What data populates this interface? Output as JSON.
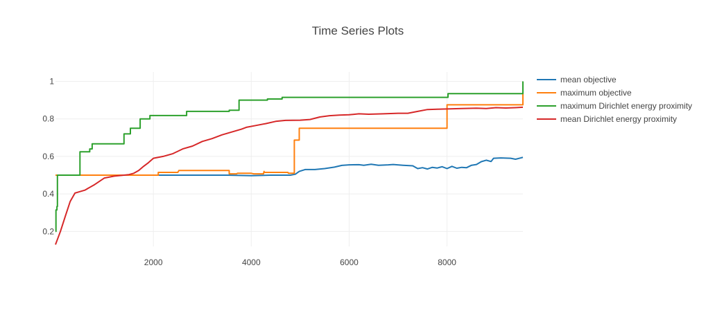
{
  "chart_data": {
    "type": "line",
    "title": "Time Series Plots",
    "xlabel": "",
    "ylabel": "",
    "xlim": [
      0,
      9550
    ],
    "ylim": [
      0.12,
      1.05
    ],
    "x_ticks": [
      2000,
      4000,
      6000,
      8000
    ],
    "y_ticks": [
      0.2,
      0.4,
      0.6,
      0.8,
      1
    ],
    "grid": true,
    "legend_position": "right",
    "series": [
      {
        "name": "mean objective",
        "color": "#1f77b4",
        "points": [
          [
            0,
            0.5
          ],
          [
            500,
            0.5
          ],
          [
            1000,
            0.5
          ],
          [
            2000,
            0.5
          ],
          [
            3000,
            0.5
          ],
          [
            3500,
            0.5
          ],
          [
            4000,
            0.497
          ],
          [
            4400,
            0.5
          ],
          [
            4800,
            0.5
          ],
          [
            4900,
            0.505
          ],
          [
            4980,
            0.52
          ],
          [
            5100,
            0.53
          ],
          [
            5300,
            0.53
          ],
          [
            5500,
            0.535
          ],
          [
            5700,
            0.543
          ],
          [
            5850,
            0.552
          ],
          [
            6000,
            0.555
          ],
          [
            6200,
            0.556
          ],
          [
            6300,
            0.553
          ],
          [
            6450,
            0.558
          ],
          [
            6600,
            0.553
          ],
          [
            6800,
            0.555
          ],
          [
            6900,
            0.557
          ],
          [
            7100,
            0.553
          ],
          [
            7300,
            0.55
          ],
          [
            7400,
            0.535
          ],
          [
            7500,
            0.54
          ],
          [
            7600,
            0.533
          ],
          [
            7700,
            0.542
          ],
          [
            7800,
            0.538
          ],
          [
            7900,
            0.545
          ],
          [
            8000,
            0.535
          ],
          [
            8100,
            0.547
          ],
          [
            8200,
            0.537
          ],
          [
            8300,
            0.542
          ],
          [
            8400,
            0.54
          ],
          [
            8500,
            0.553
          ],
          [
            8600,
            0.557
          ],
          [
            8700,
            0.572
          ],
          [
            8800,
            0.58
          ],
          [
            8900,
            0.573
          ],
          [
            8950,
            0.59
          ],
          [
            9100,
            0.592
          ],
          [
            9300,
            0.59
          ],
          [
            9400,
            0.585
          ],
          [
            9550,
            0.595
          ]
        ]
      },
      {
        "name": "maximum objective",
        "color": "#ff7f0e",
        "points": [
          [
            0,
            0.5
          ],
          [
            2100,
            0.5
          ],
          [
            2100,
            0.515
          ],
          [
            2500,
            0.515
          ],
          [
            2520,
            0.525
          ],
          [
            3550,
            0.525
          ],
          [
            3550,
            0.507
          ],
          [
            3700,
            0.507
          ],
          [
            3720,
            0.51
          ],
          [
            4000,
            0.51
          ],
          [
            4050,
            0.507
          ],
          [
            4250,
            0.507
          ],
          [
            4260,
            0.52
          ],
          [
            4270,
            0.515
          ],
          [
            4750,
            0.515
          ],
          [
            4760,
            0.51
          ],
          [
            4880,
            0.51
          ],
          [
            4880,
            0.687
          ],
          [
            4980,
            0.687
          ],
          [
            4980,
            0.75
          ],
          [
            8000,
            0.75
          ],
          [
            8000,
            0.875
          ],
          [
            9550,
            0.875
          ],
          [
            9550,
            1.0
          ]
        ]
      },
      {
        "name": "maximum Dirichlet energy proximity",
        "color": "#2ca02c",
        "points": [
          [
            0,
            0.2
          ],
          [
            10,
            0.2
          ],
          [
            10,
            0.315
          ],
          [
            30,
            0.315
          ],
          [
            30,
            0.333
          ],
          [
            40,
            0.333
          ],
          [
            40,
            0.5
          ],
          [
            500,
            0.5
          ],
          [
            500,
            0.625
          ],
          [
            700,
            0.625
          ],
          [
            700,
            0.64
          ],
          [
            750,
            0.64
          ],
          [
            750,
            0.667
          ],
          [
            1400,
            0.667
          ],
          [
            1400,
            0.72
          ],
          [
            1530,
            0.72
          ],
          [
            1530,
            0.75
          ],
          [
            1730,
            0.75
          ],
          [
            1730,
            0.8
          ],
          [
            1930,
            0.8
          ],
          [
            1930,
            0.818
          ],
          [
            2680,
            0.818
          ],
          [
            2680,
            0.84
          ],
          [
            3550,
            0.84
          ],
          [
            3550,
            0.846
          ],
          [
            3750,
            0.846
          ],
          [
            3750,
            0.9
          ],
          [
            4330,
            0.9
          ],
          [
            4330,
            0.906
          ],
          [
            4630,
            0.906
          ],
          [
            4630,
            0.915
          ],
          [
            8020,
            0.915
          ],
          [
            8020,
            0.935
          ],
          [
            9550,
            0.935
          ],
          [
            9550,
            1.0
          ]
        ]
      },
      {
        "name": "mean Dirichlet energy proximity",
        "color": "#d62728",
        "points": [
          [
            0,
            0.13
          ],
          [
            100,
            0.2
          ],
          [
            200,
            0.28
          ],
          [
            300,
            0.36
          ],
          [
            400,
            0.405
          ],
          [
            600,
            0.42
          ],
          [
            800,
            0.45
          ],
          [
            1000,
            0.485
          ],
          [
            1200,
            0.495
          ],
          [
            1400,
            0.5
          ],
          [
            1500,
            0.503
          ],
          [
            1600,
            0.51
          ],
          [
            1700,
            0.525
          ],
          [
            1800,
            0.547
          ],
          [
            1900,
            0.567
          ],
          [
            2000,
            0.59
          ],
          [
            2200,
            0.6
          ],
          [
            2400,
            0.615
          ],
          [
            2600,
            0.64
          ],
          [
            2800,
            0.655
          ],
          [
            3000,
            0.68
          ],
          [
            3200,
            0.695
          ],
          [
            3400,
            0.715
          ],
          [
            3600,
            0.73
          ],
          [
            3800,
            0.745
          ],
          [
            3900,
            0.755
          ],
          [
            4100,
            0.765
          ],
          [
            4300,
            0.775
          ],
          [
            4500,
            0.787
          ],
          [
            4700,
            0.792
          ],
          [
            5000,
            0.793
          ],
          [
            5200,
            0.797
          ],
          [
            5400,
            0.81
          ],
          [
            5600,
            0.817
          ],
          [
            5800,
            0.82
          ],
          [
            6000,
            0.822
          ],
          [
            6200,
            0.827
          ],
          [
            6400,
            0.825
          ],
          [
            6700,
            0.827
          ],
          [
            7000,
            0.83
          ],
          [
            7200,
            0.83
          ],
          [
            7400,
            0.84
          ],
          [
            7600,
            0.85
          ],
          [
            7800,
            0.852
          ],
          [
            8000,
            0.853
          ],
          [
            8300,
            0.855
          ],
          [
            8600,
            0.857
          ],
          [
            8800,
            0.855
          ],
          [
            9000,
            0.86
          ],
          [
            9200,
            0.858
          ],
          [
            9400,
            0.86
          ],
          [
            9550,
            0.862
          ]
        ]
      }
    ]
  }
}
